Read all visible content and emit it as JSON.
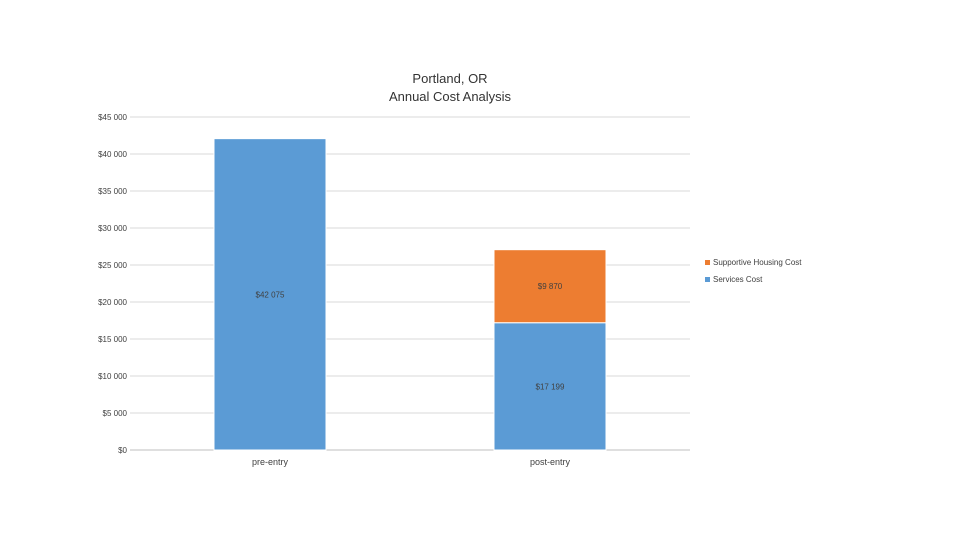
{
  "chart_data": {
    "type": "bar",
    "stacked": true,
    "title_lines": [
      "Portland, OR",
      "Annual Cost Analysis"
    ],
    "categories": [
      "pre-entry",
      "post-entry"
    ],
    "series": [
      {
        "name": "Services Cost",
        "color": "#5b9bd5",
        "values": [
          42075,
          17199
        ],
        "labels": [
          "$42 075",
          "$17 199"
        ]
      },
      {
        "name": "Supportive Housing Cost",
        "color": "#ed7d31",
        "values": [
          0,
          9870
        ],
        "labels": [
          "",
          "$9 870"
        ]
      }
    ],
    "ylim": [
      0,
      45000
    ],
    "yticks": [
      0,
      5000,
      10000,
      15000,
      20000,
      25000,
      30000,
      35000,
      40000,
      45000
    ],
    "ytick_labels": [
      "$0",
      "$5 000",
      "$10 000",
      "$15 000",
      "$20 000",
      "$25 000",
      "$30 000",
      "$35 000",
      "$40 000",
      "$45 000"
    ],
    "grid": true,
    "legend": {
      "position": "right",
      "order": [
        "Supportive Housing Cost",
        "Services Cost"
      ]
    }
  }
}
